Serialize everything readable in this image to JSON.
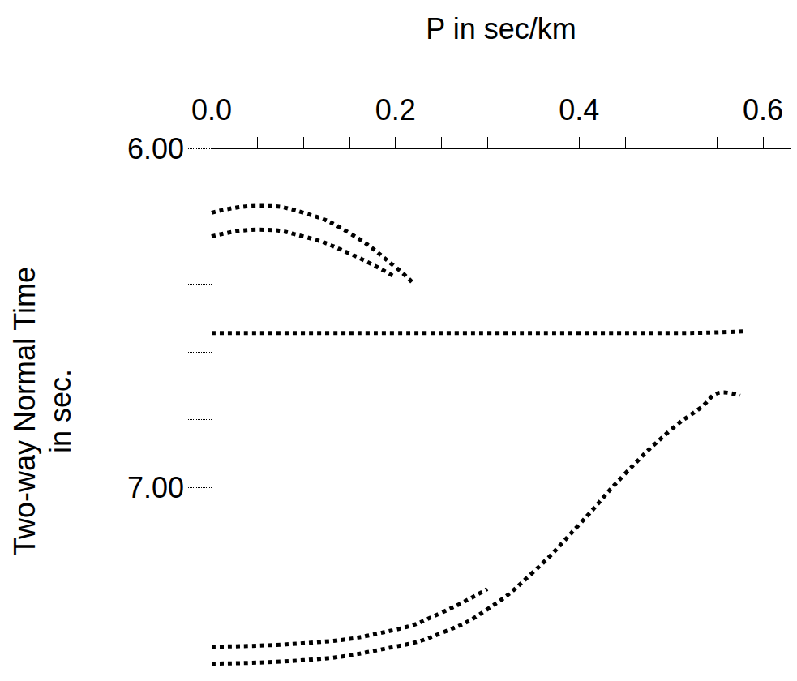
{
  "chart_data": {
    "type": "line",
    "xlabel": "P in sec/km",
    "ylabel": "Two-way Normal Time\nin sec.",
    "xlim": [
      0,
      0.63
    ],
    "xticks": [
      {
        "value": 0,
        "label": "0.0"
      },
      {
        "value": 0.2,
        "label": "0.2"
      },
      {
        "value": 0.4,
        "label": "0.4"
      },
      {
        "value": 0.6,
        "label": "0.6"
      }
    ],
    "ylim": [
      6,
      7.55
    ],
    "yticks": [
      {
        "value": 6,
        "label": "6.00"
      },
      {
        "value": 7,
        "label": "7.00"
      }
    ],
    "grid": false,
    "line_style": "dotted",
    "marker": "none",
    "series": [
      {
        "color": "#000000",
        "x": [
          0,
          0.1,
          0.2,
          0.3,
          0.4,
          0.5,
          0.58
        ],
        "values": [
          6.545,
          6.545,
          6.545,
          6.545,
          6.545,
          6.545,
          6.54
        ]
      },
      {
        "color": "#000000",
        "x": [
          0,
          0.1,
          0.2,
          0.25,
          0.3,
          0.35,
          0.4,
          0.45,
          0.5,
          0.53,
          0.557,
          0.575
        ],
        "values": [
          7.52,
          7.51,
          7.47,
          7.43,
          7.36,
          7.25,
          7.11,
          6.96,
          6.83,
          6.77,
          6.72,
          6.73
        ]
      },
      {
        "color": "#000000",
        "x": [
          0,
          0.1,
          0.2,
          0.25,
          0.3
        ],
        "values": [
          7.47,
          7.46,
          7.42,
          7.37,
          7.3
        ]
      },
      {
        "color": "#000000",
        "x": [
          0,
          0.05,
          0.1,
          0.15,
          0.2,
          0.22
        ],
        "values": [
          6.19,
          6.17,
          6.19,
          6.25,
          6.35,
          6.4
        ]
      },
      {
        "color": "#000000",
        "x": [
          0,
          0.05,
          0.1,
          0.15,
          0.2
        ],
        "values": [
          6.26,
          6.24,
          6.26,
          6.31,
          6.38
        ]
      }
    ]
  }
}
